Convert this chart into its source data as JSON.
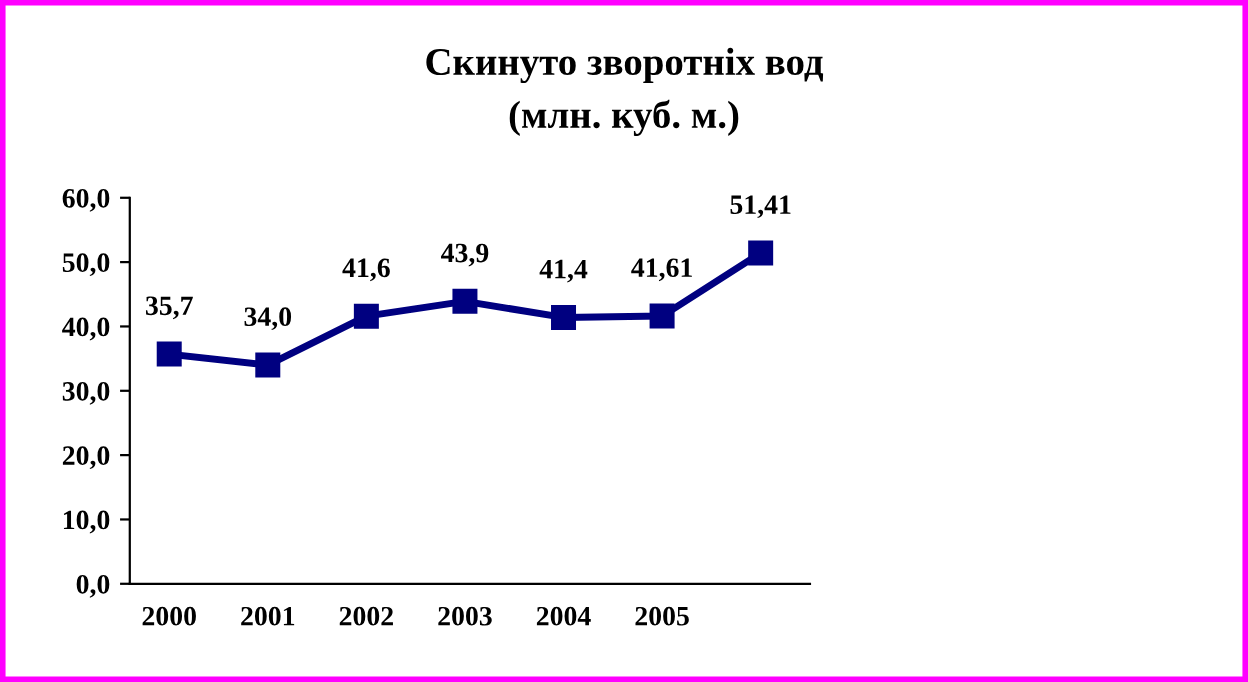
{
  "chart_data": {
    "type": "line",
    "title": "Скинуто зворотніх вод\n(млн. куб. м.)",
    "categories": [
      "2000",
      "2001",
      "2002",
      "2003",
      "2004",
      "2005",
      null
    ],
    "series": [
      {
        "color": "#000080",
        "values": [
          35.7,
          34.0,
          41.6,
          43.9,
          41.4,
          41.61,
          51.41
        ],
        "value_labels": [
          "35,7",
          "34,0",
          "41,6",
          "43,9",
          "41,4",
          "41,61",
          "51,41"
        ]
      }
    ],
    "ylim": [
      0,
      60
    ],
    "yticks": [
      {
        "value": 0,
        "label": "0,0"
      },
      {
        "value": 10,
        "label": "10,0"
      },
      {
        "value": 20,
        "label": "20,0"
      },
      {
        "value": 30,
        "label": "30,0"
      },
      {
        "value": 40,
        "label": "40,0"
      },
      {
        "value": 50,
        "label": "50,0"
      },
      {
        "value": 60,
        "label": "60,0"
      }
    ],
    "grid": false,
    "legend": false,
    "marker": "square",
    "line_style": "solid"
  }
}
